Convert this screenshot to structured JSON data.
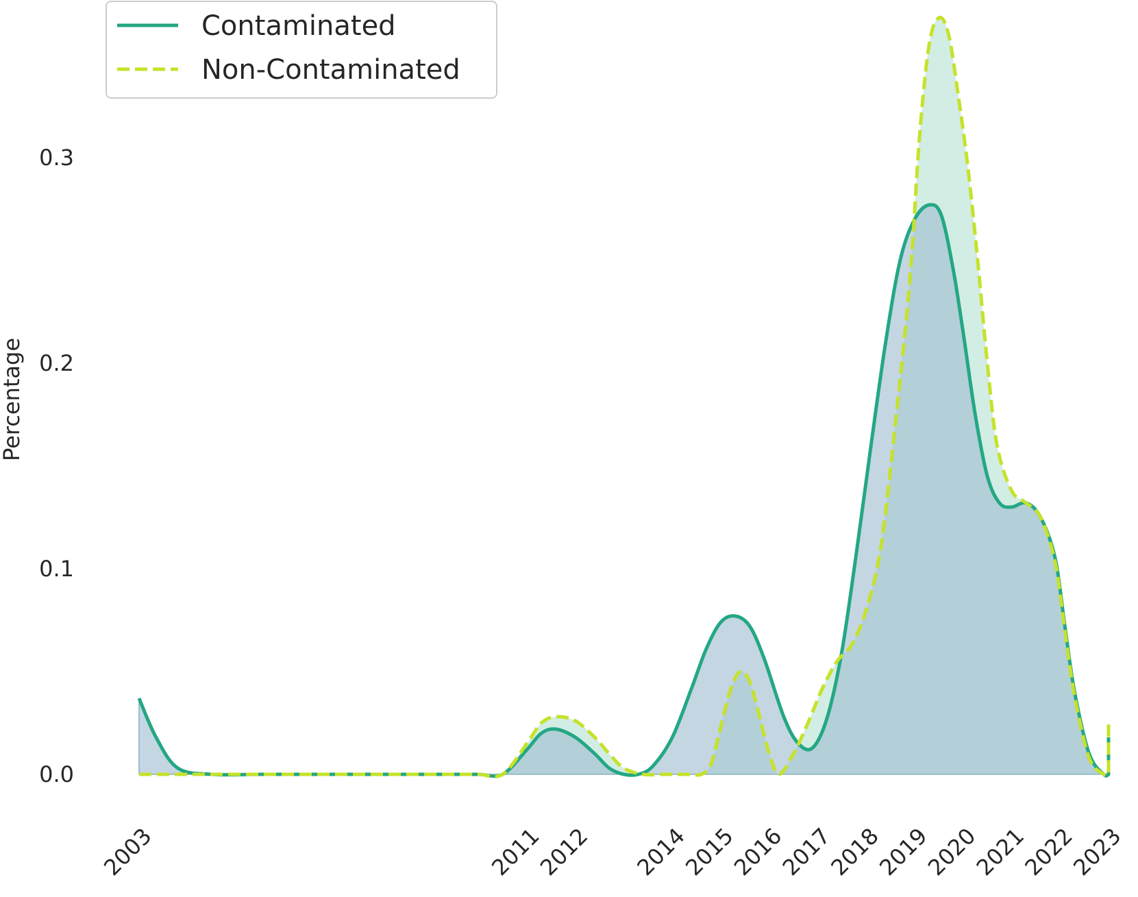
{
  "chart_data": {
    "type": "line",
    "title": "",
    "xlabel": "",
    "ylabel": "Percentage",
    "x_ticks": [
      "2003",
      "2011",
      "2012",
      "2014",
      "2015",
      "2016",
      "2017",
      "2018",
      "2019",
      "2020",
      "2021",
      "2022",
      "2023"
    ],
    "y_ticks": [
      "0.0",
      "0.1",
      "0.2",
      "0.3"
    ],
    "ylim": [
      -0.015,
      0.38
    ],
    "grid": false,
    "legend_position": "top-left",
    "series": [
      {
        "name": "Contaminated",
        "style": "solid",
        "color": "#24a784",
        "fill": "#9fbdd0",
        "x": [
          2003,
          2003.35,
          2003.8,
          2004.5,
          2005.5,
          2006.5,
          2007.5,
          2008,
          2008.5,
          2009,
          2009.5,
          2010.0,
          2010.5,
          2011.0,
          2011.3,
          2011.6,
          2012.0,
          2012.4,
          2012.7,
          2013.0,
          2013.3,
          2013.6,
          2014.0,
          2014.4,
          2014.7,
          2015.0,
          2015.3,
          2015.6,
          2015.9,
          2016.3,
          2016.6,
          2016.9,
          2017.2,
          2017.5,
          2017.8,
          2018.1,
          2018.4,
          2018.7,
          2019.0,
          2019.3,
          2019.55,
          2019.8,
          2020.0,
          2020.25,
          2020.5,
          2020.75,
          2021.0,
          2021.3,
          2021.6,
          2021.9,
          2022.1,
          2022.3,
          2022.6,
          2022.9,
          2023.0
        ],
        "values": [
          0.037,
          0.018,
          0.003,
          0.0,
          0.0,
          0.0,
          0.0,
          0.0,
          0.0,
          0.0,
          0.0,
          0.0,
          0.0,
          0.012,
          0.02,
          0.022,
          0.018,
          0.01,
          0.003,
          0.0,
          0.0,
          0.004,
          0.018,
          0.042,
          0.061,
          0.074,
          0.077,
          0.072,
          0.056,
          0.028,
          0.015,
          0.013,
          0.028,
          0.06,
          0.108,
          0.16,
          0.21,
          0.25,
          0.27,
          0.277,
          0.272,
          0.245,
          0.215,
          0.175,
          0.145,
          0.132,
          0.13,
          0.132,
          0.125,
          0.105,
          0.072,
          0.04,
          0.01,
          0.0,
          0.0
        ],
        "tail": [
          [
            2022.9,
            0.0
          ],
          [
            2023.0,
            0.018
          ]
        ]
      },
      {
        "name": "Non-Contaminated",
        "style": "dashed",
        "color": "#c5e22a",
        "fill": "#d0ece3",
        "x": [
          2003,
          2004,
          2005,
          2006,
          2007,
          2008,
          2009,
          2009.5,
          2010.0,
          2010.5,
          2011.0,
          2011.3,
          2011.6,
          2012.0,
          2012.4,
          2012.7,
          2013.0,
          2013.4,
          2013.8,
          2014.0,
          2014.2,
          2014.4,
          2014.6,
          2014.8,
          2015.0,
          2015.2,
          2015.4,
          2015.6,
          2015.8,
          2016.0,
          2016.2,
          2016.5,
          2016.8,
          2017.1,
          2017.4,
          2017.7,
          2018.0,
          2018.3,
          2018.6,
          2018.9,
          2019.1,
          2019.3,
          2019.5,
          2019.7,
          2019.9,
          2020.1,
          2020.3,
          2020.5,
          2020.7,
          2021.0,
          2021.3,
          2021.6,
          2021.9,
          2022.1,
          2022.3,
          2022.6,
          2022.9,
          2023.0
        ],
        "values": [
          0.0,
          0.0,
          0.0,
          0.0,
          0.0,
          0.0,
          0.0,
          0.0,
          0.0,
          0.0,
          0.015,
          0.025,
          0.028,
          0.026,
          0.018,
          0.01,
          0.003,
          0.0,
          0.0,
          0.0,
          0.0,
          0.0,
          0.0,
          0.005,
          0.023,
          0.041,
          0.05,
          0.045,
          0.028,
          0.01,
          0.0,
          0.01,
          0.025,
          0.042,
          0.055,
          0.063,
          0.08,
          0.11,
          0.17,
          0.24,
          0.31,
          0.355,
          0.368,
          0.36,
          0.33,
          0.295,
          0.25,
          0.2,
          0.16,
          0.138,
          0.132,
          0.125,
          0.103,
          0.07,
          0.038,
          0.008,
          0.0,
          0.0
        ],
        "tail": [
          [
            2022.9,
            0.0
          ],
          [
            2023.0,
            0.026
          ]
        ]
      }
    ]
  }
}
